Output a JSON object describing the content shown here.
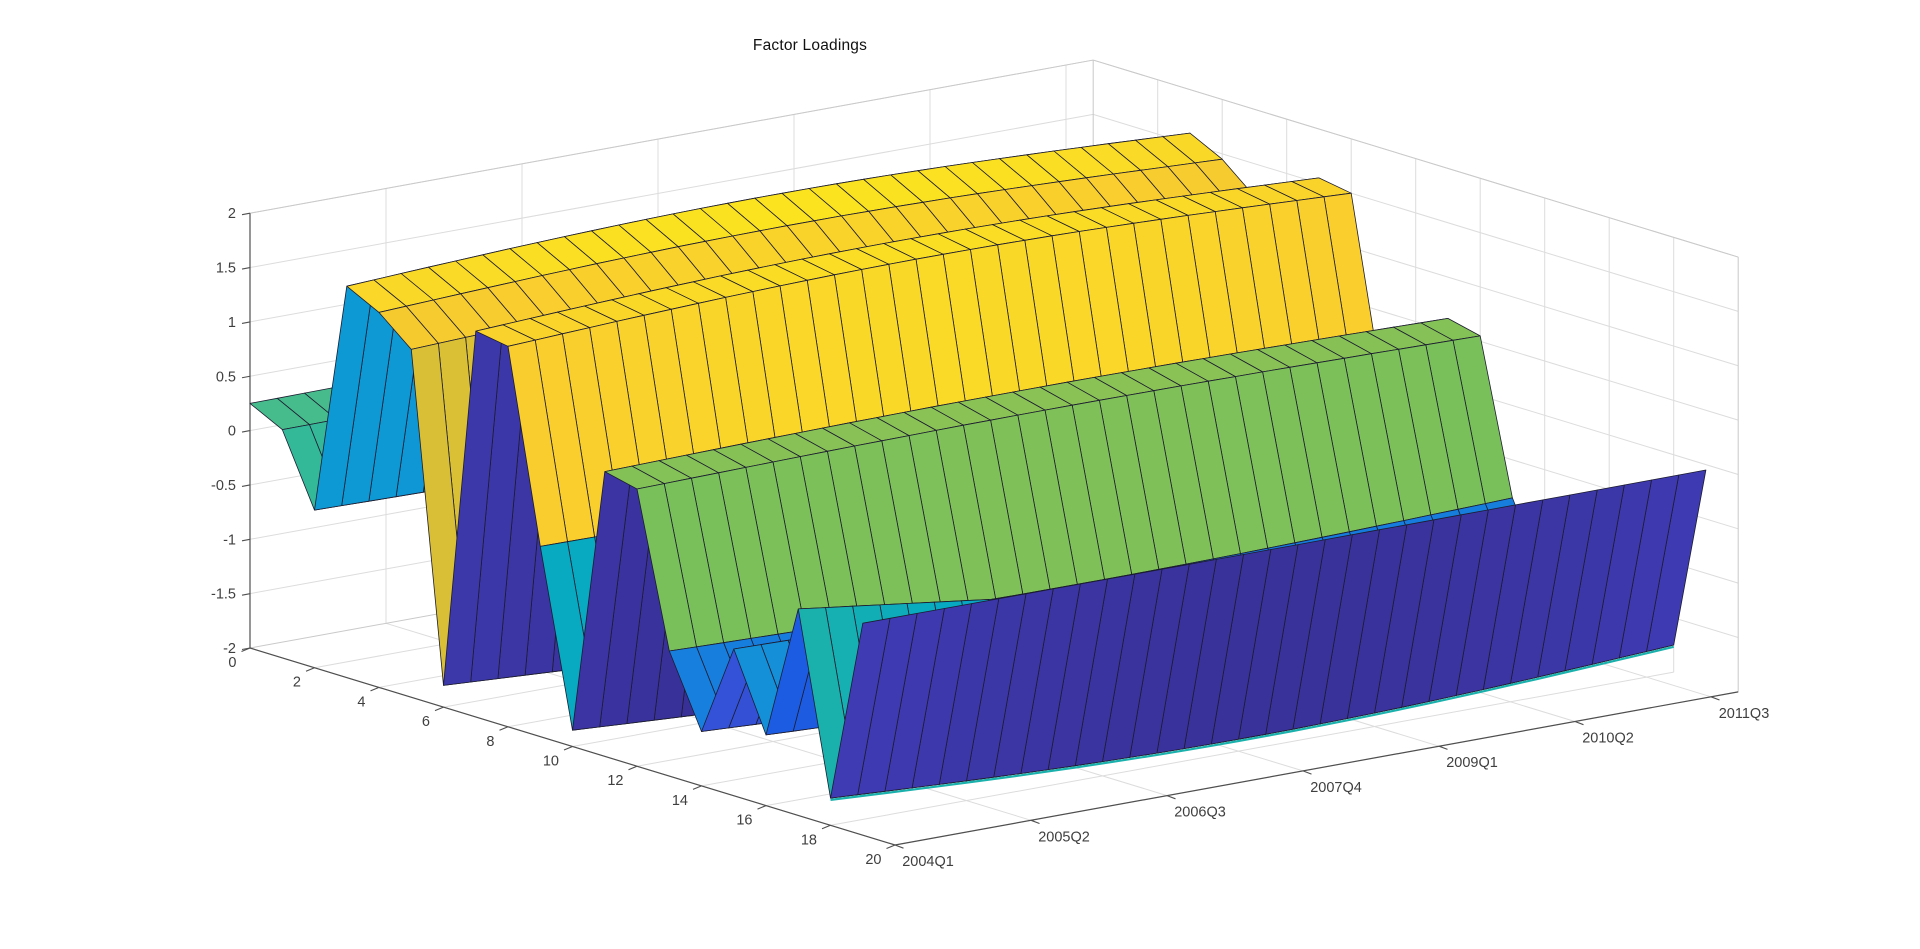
{
  "title": "Factor Loadings",
  "figure": {
    "background": "#ffffff"
  },
  "chart_data": {
    "type": "surface3d",
    "title": "Factor Loadings",
    "n_factors": 20,
    "n_times": 32,
    "zlim": [
      -2,
      2
    ],
    "factor_axis_range": [
      0,
      20
    ],
    "z_ticks": [
      {
        "v": 2,
        "label": "2"
      },
      {
        "v": 1.5,
        "label": "1.5"
      },
      {
        "v": 1,
        "label": "1"
      },
      {
        "v": 0.5,
        "label": "0.5"
      },
      {
        "v": 0,
        "label": "0"
      },
      {
        "v": -0.5,
        "label": "-0.5"
      },
      {
        "v": -1,
        "label": "-1"
      },
      {
        "v": -1.5,
        "label": "-1.5"
      },
      {
        "v": -2,
        "label": "-2"
      }
    ],
    "factor_ticks": [
      {
        "v": 0,
        "label": "0"
      },
      {
        "v": 2,
        "label": "2"
      },
      {
        "v": 4,
        "label": "4"
      },
      {
        "v": 6,
        "label": "6"
      },
      {
        "v": 8,
        "label": "8"
      },
      {
        "v": 10,
        "label": "10"
      },
      {
        "v": 12,
        "label": "12"
      },
      {
        "v": 14,
        "label": "14"
      },
      {
        "v": 16,
        "label": "16"
      },
      {
        "v": 18,
        "label": "18"
      },
      {
        "v": 20,
        "label": "20"
      }
    ],
    "time_ticks": [
      {
        "t": 1,
        "label": "2004Q1"
      },
      {
        "t": 6,
        "label": "2005Q2"
      },
      {
        "t": 11,
        "label": "2006Q3"
      },
      {
        "t": 16,
        "label": "2007Q4"
      },
      {
        "t": 21,
        "label": "2009Q1"
      },
      {
        "t": 26,
        "label": "2010Q2"
      },
      {
        "t": 31,
        "label": "2011Q3"
      }
    ],
    "factor_grid_values": [
      2,
      4,
      6,
      8,
      10,
      12,
      14,
      16,
      18,
      20
    ],
    "factor_profile": [
      0.25,
      0.1,
      -0.55,
      1.6,
      1.45,
      1.2,
      -1.8,
      1.55,
      1.5,
      -0.25,
      -1.85,
      0.62,
      0.55,
      -0.85,
      -1.5,
      -0.65,
      -1.35,
      -0.1,
      -1.75,
      -0.05
    ],
    "row_drift": [
      0,
      0,
      0,
      0,
      0,
      0,
      0,
      0,
      0,
      0,
      0,
      0,
      0,
      0,
      0,
      0,
      0,
      -1.0,
      0,
      0
    ],
    "time_arch_amplitude": 0.08,
    "colormap": "parula",
    "colormap_stops": [
      [
        0.0,
        "#352a87"
      ],
      [
        0.065,
        "#3f3cb5"
      ],
      [
        0.125,
        "#3352d8"
      ],
      [
        0.1875,
        "#0c63e8"
      ],
      [
        0.25,
        "#1173de"
      ],
      [
        0.3125,
        "#1b87dd"
      ],
      [
        0.375,
        "#0a9dd1"
      ],
      [
        0.4375,
        "#07aac1"
      ],
      [
        0.5,
        "#27b6a0"
      ],
      [
        0.5625,
        "#46bb8c"
      ],
      [
        0.625,
        "#71bf5c"
      ],
      [
        0.6875,
        "#97c352"
      ],
      [
        0.75,
        "#c2bd3f"
      ],
      [
        0.8125,
        "#dfc033"
      ],
      [
        0.875,
        "#f9cd2e"
      ],
      [
        0.9375,
        "#fbe51f"
      ],
      [
        1.0,
        "#f9fb0e"
      ]
    ],
    "bottom_edge_accent": {
      "row": 18,
      "color_value": -0.1
    },
    "surface_edge_color": "#1c1c30",
    "grid_color": "#dcdcdc",
    "box_edge_color": "#c9c9c9",
    "axis_color": "#4f4f4f",
    "label_color": "#3f3f3f",
    "tick_font_size": 14.5
  }
}
